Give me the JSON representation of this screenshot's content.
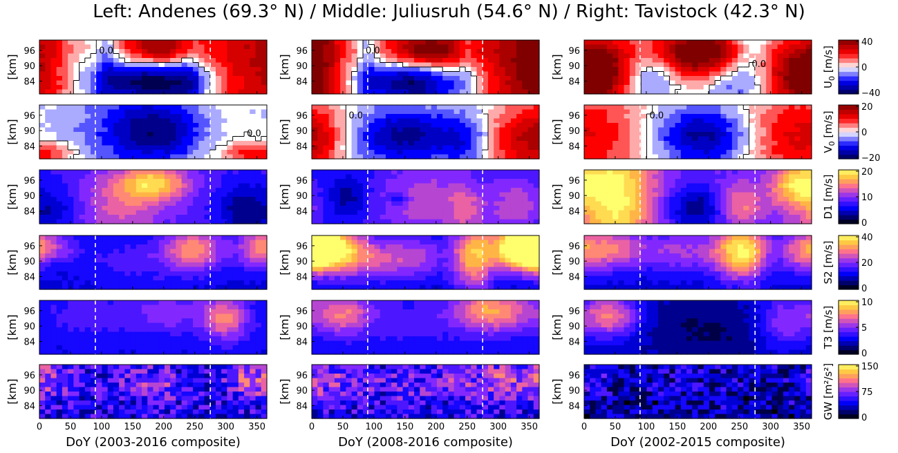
{
  "title": "Left: Andenes (69.3° N) / Middle: Juliusruh (54.6° N) / Right: Tavistock (42.3° N)",
  "chart_data": {
    "type": "heatmap",
    "columns": [
      {
        "station": "Andenes",
        "latitude": "69.3° N",
        "xlabel": "DoY (2003-2016 composite)"
      },
      {
        "station": "Juliusruh",
        "latitude": "54.6° N",
        "xlabel": "DoY (2008-2016 composite)"
      },
      {
        "station": "Tavistock",
        "latitude": "42.3° N",
        "xlabel": "DoY (2002-2015 composite)"
      }
    ],
    "x_ticks": [
      0,
      50,
      100,
      150,
      200,
      250,
      300,
      350
    ],
    "xlim": [
      0,
      366
    ],
    "ylabel": "[km]",
    "y_ticks": [
      84,
      90,
      96
    ],
    "ylim": [
      79,
      100
    ],
    "dashed_lines_doy": [
      90,
      275
    ],
    "rows": [
      {
        "variable": "U_0",
        "label_main": "U",
        "label_sub": "0",
        "unit": " [m/s]",
        "colormap": "seismic",
        "range": [
          -40,
          40
        ],
        "cbar_ticks": [
          "40",
          "0",
          "−40"
        ],
        "contour_label": "0.0",
        "fields": [
          [
            [
              195,
              97,
              40,
              6,
              48
            ],
            [
              180,
              84,
              -44,
              6,
              60
            ],
            [
              15,
              92,
              18,
              22,
              30
            ],
            [
              345,
              92,
              18,
              22,
              30
            ],
            [
              300,
              92,
              14,
              30,
              30
            ],
            [
              110,
              95,
              -12,
              15,
              12
            ],
            [
              240,
              83,
              -12,
              15,
              15
            ]
          ],
          [
            [
              190,
              96,
              45,
              6,
              55
            ],
            [
              160,
              84,
              -40,
              6,
              55
            ],
            [
              20,
              92,
              26,
              25,
              30
            ],
            [
              350,
              92,
              26,
              25,
              30
            ],
            [
              300,
              90,
              18,
              30,
              30
            ],
            [
              250,
              96,
              -10,
              12,
              12
            ],
            [
              90,
              96,
              -12,
              18,
              10
            ]
          ],
          [
            [
              185,
              95,
              48,
              7,
              55
            ],
            [
              30,
              88,
              42,
              10,
              35
            ],
            [
              340,
              86,
              34,
              10,
              35
            ],
            [
              230,
              84,
              -14,
              6,
              25
            ],
            [
              110,
              86,
              -18,
              6,
              30
            ],
            [
              265,
              96,
              -15,
              12,
              20
            ]
          ]
        ]
      },
      {
        "variable": "V_0",
        "label_main": "V",
        "label_sub": "0",
        "unit": " [m/s]",
        "colormap": "seismic",
        "range": [
          -20,
          20
        ],
        "cbar_ticks": [
          "20",
          "0",
          "−20"
        ],
        "contour_label": "0.0",
        "fields": [
          [
            [
              190,
              90,
              -14,
              8,
              50
            ],
            [
              20,
              81,
              9,
              3,
              30
            ],
            [
              330,
              81,
              9,
              3,
              30
            ],
            [
              130,
              90,
              -6,
              20,
              80
            ]
          ],
          [
            [
              150,
              88,
              -16,
              8,
              60
            ],
            [
              15,
              88,
              10,
              10,
              30
            ],
            [
              330,
              86,
              12,
              10,
              40
            ],
            [
              250,
              86,
              -8,
              8,
              30
            ]
          ],
          [
            [
              190,
              88,
              -16,
              8,
              55
            ],
            [
              40,
              88,
              8,
              12,
              50
            ],
            [
              320,
              88,
              10,
              12,
              50
            ]
          ]
        ]
      },
      {
        "variable": "D1",
        "label_main": "D1",
        "label_sub": "",
        "unit": " [m/s]",
        "colormap": "gnuplot2",
        "range": [
          0,
          20
        ],
        "cbar_ticks": [
          "20",
          "10",
          "0"
        ],
        "contour_label": "",
        "fields": [
          [
            [
              0,
              0,
              8,
              0,
              0
            ],
            [
              185,
              95,
              9,
              5,
              40
            ],
            [
              130,
              86,
              5,
              10,
              50
            ],
            [
              330,
              84,
              -5,
              8,
              30
            ],
            [
              30,
              84,
              -3,
              8,
              30
            ]
          ],
          [
            [
              0,
              0,
              7,
              0,
              0
            ],
            [
              180,
              88,
              5,
              10,
              60
            ],
            [
              330,
              86,
              5,
              8,
              30
            ],
            [
              140,
              89,
              -4,
              2,
              12
            ],
            [
              60,
              90,
              -4,
              6,
              25
            ],
            [
              250,
              84,
              4,
              8,
              20
            ]
          ],
          [
            [
              0,
              0,
              9,
              0,
              0
            ],
            [
              50,
              90,
              11,
              20,
              45
            ],
            [
              180,
              85,
              -6,
              6,
              35
            ],
            [
              340,
              94,
              8,
              6,
              30
            ],
            [
              250,
              86,
              6,
              6,
              25
            ]
          ]
        ]
      },
      {
        "variable": "S2",
        "label_main": "S2",
        "label_sub": "",
        "unit": " [m/s]",
        "colormap": "gnuplot2",
        "range": [
          0,
          40
        ],
        "cbar_ticks": [
          "40",
          "20",
          "0"
        ],
        "contour_label": "",
        "fields": [
          [
            [
              0,
              0,
              10,
              0,
              0
            ],
            [
              250,
              95,
              18,
              6,
              35
            ],
            [
              350,
              95,
              14,
              6,
              25
            ],
            [
              20,
              96,
              10,
              4,
              30
            ],
            [
              160,
              90,
              6,
              8,
              80
            ]
          ],
          [
            [
              0,
              0,
              10,
              0,
              0
            ],
            [
              10,
              95,
              30,
              6,
              50
            ],
            [
              350,
              96,
              30,
              6,
              35
            ],
            [
              260,
              92,
              22,
              10,
              25
            ],
            [
              100,
              90,
              12,
              6,
              60
            ],
            [
              170,
              93,
              8,
              6,
              30
            ]
          ],
          [
            [
              0,
              0,
              10,
              0,
              0
            ],
            [
              255,
              94,
              28,
              8,
              30
            ],
            [
              40,
              95,
              18,
              6,
              40
            ],
            [
              160,
              94,
              12,
              6,
              50
            ],
            [
              350,
              94,
              14,
              6,
              25
            ]
          ]
        ]
      },
      {
        "variable": "T3",
        "label_main": "T3",
        "label_sub": "",
        "unit": " [m/s]",
        "colormap": "gnuplot2",
        "range": [
          0,
          10
        ],
        "cbar_ticks": [
          "10",
          "5",
          "0"
        ],
        "contour_label": "",
        "fields": [
          [
            [
              0,
              0,
              3,
              0,
              0
            ],
            [
              300,
              93,
              4,
              6,
              25
            ],
            [
              200,
              95,
              2,
              6,
              60
            ],
            [
              60,
              94,
              1,
              6,
              40
            ]
          ],
          [
            [
              0,
              0,
              3,
              0,
              0
            ],
            [
              290,
              96,
              5,
              6,
              45
            ],
            [
              50,
              95,
              4,
              6,
              35
            ],
            [
              160,
              92,
              1,
              8,
              50
            ]
          ],
          [
            [
              0,
              0,
              2.2,
              0,
              0
            ],
            [
              40,
              94,
              5,
              6,
              35
            ],
            [
              320,
              92,
              3,
              8,
              30
            ],
            [
              200,
              88,
              -1,
              8,
              80
            ]
          ]
        ]
      },
      {
        "variable": "GW",
        "label_main": "GW",
        "label_sub": "",
        "unit": " [m²/s²]",
        "colormap": "gnuplot2",
        "range": [
          0,
          150
        ],
        "cbar_ticks": [
          "150",
          "75",
          "0"
        ],
        "contour_label": "",
        "fields": [
          [
            [
              0,
              0,
              45,
              0,
              0
            ],
            [
              180,
              92,
              30,
              6,
              40
            ],
            [
              340,
              94,
              40,
              6,
              30
            ],
            [
              30,
              95,
              25,
              6,
              35
            ]
          ],
          [
            [
              0,
              0,
              45,
              0,
              0
            ],
            [
              300,
              94,
              40,
              6,
              50
            ],
            [
              30,
              94,
              30,
              6,
              40
            ],
            [
              170,
              92,
              20,
              6,
              50
            ]
          ],
          [
            [
              0,
              0,
              30,
              0,
              0
            ],
            [
              10,
              95,
              30,
              5,
              20
            ],
            [
              180,
              96,
              10,
              5,
              80
            ]
          ]
        ]
      }
    ]
  }
}
